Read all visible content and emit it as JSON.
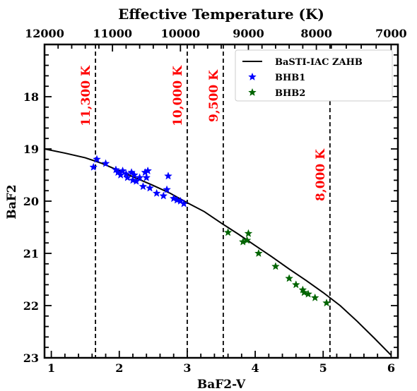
{
  "chart_data": {
    "type": "scatter",
    "xlabel": "BaF2-V",
    "ylabel": "BaF2",
    "top_axis_label": "Effective Temperature (K)",
    "xlim": [
      0.9,
      6.1
    ],
    "ylim": [
      23,
      17.0
    ],
    "y_inverted": true,
    "x_ticks": [
      1,
      2,
      3,
      4,
      5,
      6
    ],
    "y_ticks": [
      18,
      19,
      20,
      21,
      22,
      23
    ],
    "top_ticks": [
      {
        "label": "12000",
        "x": 0.9
      },
      {
        "label": "11000",
        "x": 1.9
      },
      {
        "label": "10000",
        "x": 2.9
      },
      {
        "label": "9000",
        "x": 3.9
      },
      {
        "label": "8000",
        "x": 4.9
      },
      {
        "label": "7000",
        "x": 6.0
      }
    ],
    "vertical_lines": [
      {
        "x": 1.65,
        "label": "11,300 K"
      },
      {
        "x": 3.0,
        "label": "10,000 K"
      },
      {
        "x": 3.53,
        "label": "9,500 K"
      },
      {
        "x": 5.1,
        "label": "8,000 K"
      }
    ],
    "series": [
      {
        "name": "BaSTI-IAC ZAHB",
        "kind": "line",
        "color": "#000000",
        "x": [
          0.9,
          1.2,
          1.5,
          1.75,
          2.0,
          2.25,
          2.5,
          2.75,
          3.0,
          3.25,
          3.5,
          3.75,
          4.0,
          4.25,
          4.5,
          4.75,
          5.0,
          5.25,
          5.5,
          5.75,
          6.0
        ],
        "y": [
          19.0,
          19.08,
          19.17,
          19.28,
          19.42,
          19.56,
          19.7,
          19.85,
          20.03,
          20.2,
          20.42,
          20.63,
          20.85,
          21.07,
          21.3,
          21.52,
          21.75,
          22.0,
          22.3,
          22.62,
          22.95
        ]
      },
      {
        "name": "BHB1",
        "kind": "scatter",
        "color": "#0000ff",
        "x": [
          1.62,
          1.67,
          1.8,
          1.95,
          1.98,
          2.02,
          2.05,
          2.1,
          2.12,
          2.18,
          2.2,
          2.22,
          2.25,
          2.3,
          2.35,
          2.38,
          2.4,
          2.42,
          2.45,
          2.55,
          2.65,
          2.7,
          2.72,
          2.8,
          2.85,
          2.9,
          2.95
        ],
        "y": [
          19.35,
          19.2,
          19.28,
          19.4,
          19.45,
          19.5,
          19.42,
          19.48,
          19.55,
          19.45,
          19.6,
          19.5,
          19.62,
          19.55,
          19.72,
          19.45,
          19.55,
          19.42,
          19.75,
          19.85,
          19.9,
          19.78,
          19.52,
          19.95,
          19.98,
          20.0,
          20.05
        ]
      },
      {
        "name": "BHB2",
        "kind": "scatter",
        "color": "#006400",
        "x": [
          3.6,
          3.82,
          3.88,
          3.9,
          4.05,
          4.3,
          4.5,
          4.6,
          4.7,
          4.72,
          4.78,
          4.88,
          5.05
        ],
        "y": [
          20.6,
          20.78,
          20.75,
          20.62,
          21.0,
          21.25,
          21.48,
          21.6,
          21.7,
          21.75,
          21.78,
          21.85,
          21.95
        ]
      }
    ],
    "legend": {
      "placement": "top-right"
    }
  }
}
